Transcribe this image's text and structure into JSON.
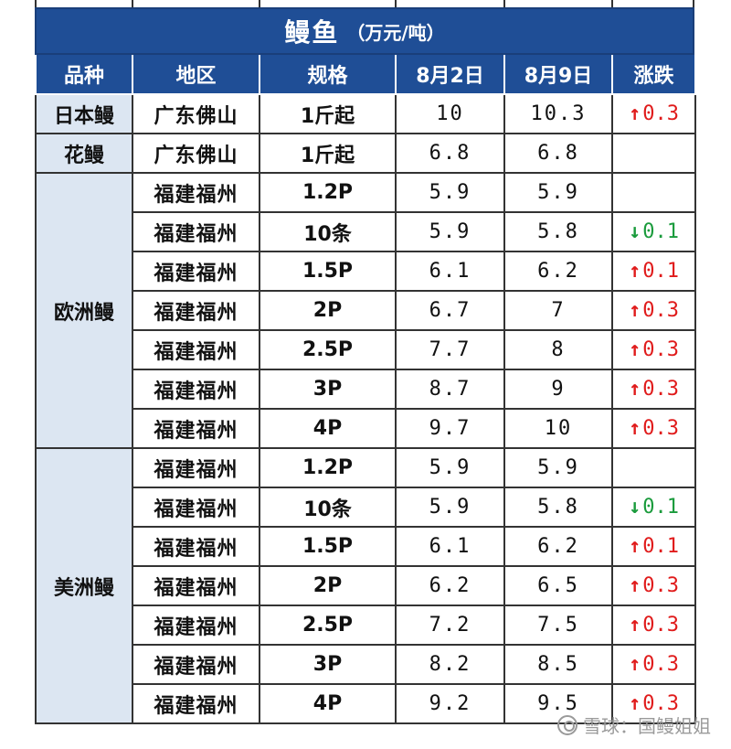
{
  "title": {
    "main": "鳗鱼",
    "unit": "（万元/吨）"
  },
  "headers": [
    "品种",
    "地区",
    "规格",
    "8月2日",
    "8月9日",
    "涨跌"
  ],
  "colors": {
    "header_bg": "#1f4e96",
    "up": "#e01b1b",
    "down": "#1a9b3c"
  },
  "groups": [
    {
      "variety": "日本鳗",
      "rows": [
        {
          "region": "广东佛山",
          "spec": "1斤起",
          "aug2": "10",
          "aug9": "10.3",
          "change": {
            "dir": "up",
            "value": "0.3"
          }
        }
      ]
    },
    {
      "variety": "花鳗",
      "rows": [
        {
          "region": "广东佛山",
          "spec": "1斤起",
          "aug2": "6.8",
          "aug9": "6.8",
          "change": null
        }
      ]
    },
    {
      "variety": "欧洲鳗",
      "rows": [
        {
          "region": "福建福州",
          "spec": "1.2P",
          "aug2": "5.9",
          "aug9": "5.9",
          "change": null
        },
        {
          "region": "福建福州",
          "spec": "10条",
          "aug2": "5.9",
          "aug9": "5.8",
          "change": {
            "dir": "down",
            "value": "0.1"
          }
        },
        {
          "region": "福建福州",
          "spec": "1.5P",
          "aug2": "6.1",
          "aug9": "6.2",
          "change": {
            "dir": "up",
            "value": "0.1"
          }
        },
        {
          "region": "福建福州",
          "spec": "2P",
          "aug2": "6.7",
          "aug9": "7",
          "change": {
            "dir": "up",
            "value": "0.3"
          }
        },
        {
          "region": "福建福州",
          "spec": "2.5P",
          "aug2": "7.7",
          "aug9": "8",
          "change": {
            "dir": "up",
            "value": "0.3"
          }
        },
        {
          "region": "福建福州",
          "spec": "3P",
          "aug2": "8.7",
          "aug9": "9",
          "change": {
            "dir": "up",
            "value": "0.3"
          }
        },
        {
          "region": "福建福州",
          "spec": "4P",
          "aug2": "9.7",
          "aug9": "10",
          "change": {
            "dir": "up",
            "value": "0.3"
          }
        }
      ]
    },
    {
      "variety": "美洲鳗",
      "rows": [
        {
          "region": "福建福州",
          "spec": "1.2P",
          "aug2": "5.9",
          "aug9": "5.9",
          "change": null
        },
        {
          "region": "福建福州",
          "spec": "10条",
          "aug2": "5.9",
          "aug9": "5.8",
          "change": {
            "dir": "down",
            "value": "0.1"
          }
        },
        {
          "region": "福建福州",
          "spec": "1.5P",
          "aug2": "6.1",
          "aug9": "6.2",
          "change": {
            "dir": "up",
            "value": "0.1"
          }
        },
        {
          "region": "福建福州",
          "spec": "2P",
          "aug2": "6.2",
          "aug9": "6.5",
          "change": {
            "dir": "up",
            "value": "0.3"
          }
        },
        {
          "region": "福建福州",
          "spec": "2.5P",
          "aug2": "7.2",
          "aug9": "7.5",
          "change": {
            "dir": "up",
            "value": "0.3"
          }
        },
        {
          "region": "福建福州",
          "spec": "3P",
          "aug2": "8.2",
          "aug9": "8.5",
          "change": {
            "dir": "up",
            "value": "0.3"
          }
        },
        {
          "region": "福建福州",
          "spec": "4P",
          "aug2": "9.2",
          "aug9": "9.5",
          "change": {
            "dir": "up",
            "value": "0.3"
          }
        }
      ]
    }
  ],
  "credit": "雪球：国鳗姐姐"
}
